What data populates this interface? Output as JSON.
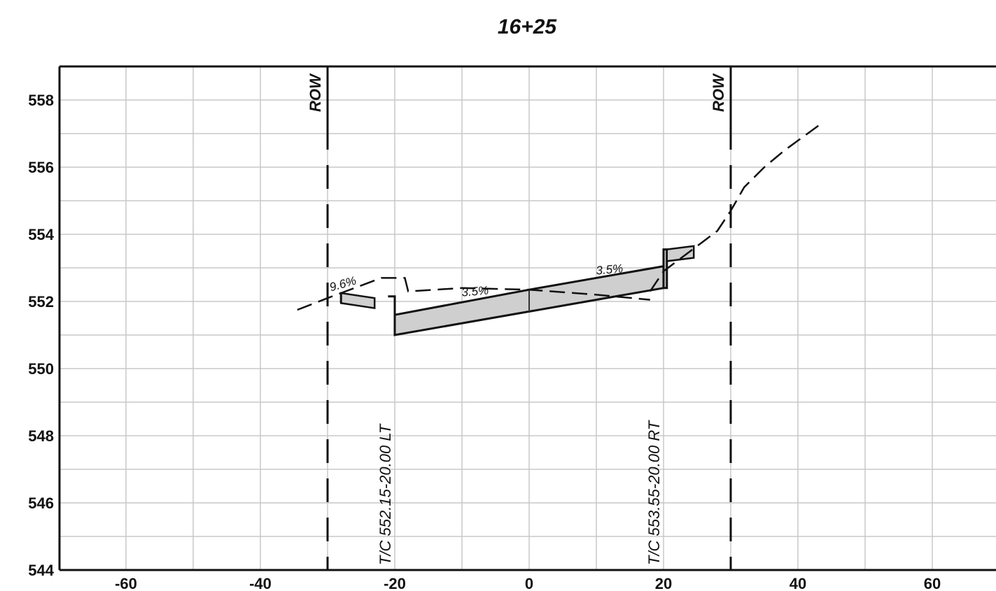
{
  "title": "16+25",
  "chart_data": {
    "type": "line",
    "xlim": [
      -70,
      70
    ],
    "ylim": [
      544,
      559
    ],
    "x_ticks": [
      -60,
      -40,
      -20,
      0,
      20,
      40,
      60
    ],
    "x_tick_labels": [
      "-60",
      "-40",
      "-20",
      "0",
      "20",
      "40",
      "60"
    ],
    "y_ticks": [
      544,
      546,
      548,
      550,
      552,
      554,
      556,
      558
    ],
    "y_tick_labels": [
      "544",
      "546",
      "548",
      "550",
      "552",
      "554",
      "556",
      "558"
    ],
    "grid": true,
    "row_lines": [
      {
        "x": -30,
        "label": "ROW"
      },
      {
        "x": 30,
        "label": "ROW"
      }
    ],
    "existing_ground": {
      "style": "dashed",
      "x": [
        -34.5,
        -30,
        -26,
        -22,
        -18.5,
        -18,
        -10,
        0,
        10,
        18
      ],
      "y": [
        551.75,
        552.1,
        552.4,
        552.7,
        552.7,
        552.3,
        552.4,
        552.35,
        552.2,
        552.05
      ]
    },
    "existing_ground_right": {
      "style": "dashed",
      "x": [
        18,
        19,
        20,
        22,
        24,
        26,
        28,
        30,
        32,
        35,
        38,
        43.5
      ],
      "y": [
        552.3,
        552.6,
        552.9,
        553.2,
        553.5,
        553.8,
        554.1,
        554.7,
        555.4,
        556.0,
        556.5,
        557.3
      ]
    },
    "proposed_section": {
      "top": {
        "x": [
          -20,
          0,
          20
        ],
        "y": [
          551.6,
          552.35,
          553.05
        ]
      },
      "bottom": {
        "x": [
          -20,
          0,
          20
        ],
        "y": [
          551.0,
          551.7,
          552.4
        ]
      }
    },
    "slope_labels": [
      {
        "text": "9.6%",
        "x": -29.5,
        "y": 552.3
      },
      {
        "text": "3.5%",
        "x": -10,
        "y": 552.15
      },
      {
        "text": "3.5%",
        "x": 10,
        "y": 552.8
      }
    ],
    "callouts": [
      {
        "text": "T/C  552.15-20.00 LT",
        "x": -20
      },
      {
        "text": "T/C  553.55-20.00 RT",
        "x": 20
      }
    ]
  }
}
